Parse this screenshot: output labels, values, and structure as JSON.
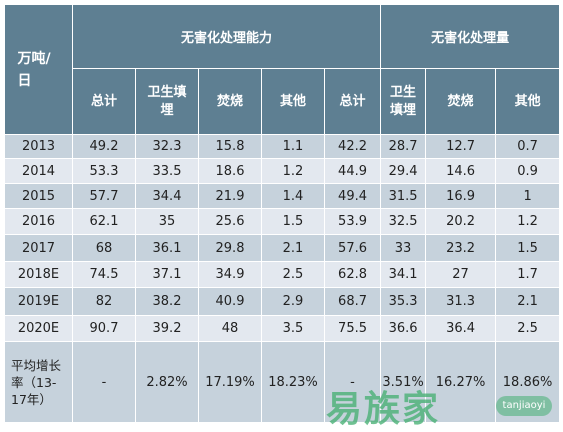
{
  "header": {
    "corner": "万吨/日",
    "group_capacity": "无害化处理能力",
    "group_volume": "无害化处理量",
    "sub": [
      "总计",
      "卫生填埋",
      "焚烧",
      "其他",
      "总计",
      "卫生填埋",
      "焚烧",
      "其他"
    ]
  },
  "rows": [
    {
      "year": "2013",
      "values": [
        "49.2",
        "32.3",
        "15.8",
        "1.1",
        "42.2",
        "28.7",
        "12.7",
        "0.7"
      ]
    },
    {
      "year": "2014",
      "values": [
        "53.3",
        "33.5",
        "18.6",
        "1.2",
        "44.9",
        "29.4",
        "14.6",
        "0.9"
      ]
    },
    {
      "year": "2015",
      "values": [
        "57.7",
        "34.4",
        "21.9",
        "1.4",
        "49.4",
        "31.5",
        "16.9",
        "1"
      ]
    },
    {
      "year": "2016",
      "values": [
        "62.1",
        "35",
        "25.6",
        "1.5",
        "53.9",
        "32.5",
        "20.2",
        "1.2"
      ]
    },
    {
      "year": "2017",
      "values": [
        "68",
        "36.1",
        "29.8",
        "2.1",
        "57.6",
        "33",
        "23.2",
        "1.5"
      ]
    },
    {
      "year": "2018E",
      "values": [
        "74.5",
        "37.1",
        "34.9",
        "2.5",
        "62.8",
        "34.1",
        "27",
        "1.7"
      ]
    },
    {
      "year": "2019E",
      "values": [
        "82",
        "38.2",
        "40.9",
        "2.9",
        "68.7",
        "35.3",
        "31.3",
        "2.1"
      ]
    },
    {
      "year": "2020E",
      "values": [
        "90.7",
        "39.2",
        "48",
        "3.5",
        "75.5",
        "36.6",
        "36.4",
        "2.5"
      ]
    }
  ],
  "growth": {
    "label": "平均增长率（13-17年）",
    "values": [
      "-",
      "2.82%",
      "17.19%",
      "18.23%",
      "-",
      "3.51%",
      "16.27%",
      "18.86%"
    ]
  },
  "watermark": {
    "cn": "易族家",
    "en": "tanjiaoyi"
  },
  "colors": {
    "header_bg": "#5e7f92",
    "row_dark": "#c6d2dc",
    "row_light": "#e3e8ef",
    "watermark": "#46af73"
  }
}
